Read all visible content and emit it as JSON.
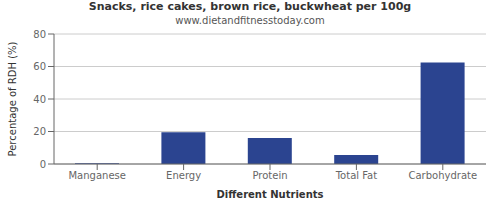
{
  "chart_data": {
    "type": "bar",
    "title": "Snacks, rice cakes, brown rice, buckwheat per 100g",
    "subtitle": "www.dietandfitnesstoday.com",
    "xlabel": "Different Nutrients",
    "ylabel": "Percentage of RDH (%)",
    "categories": [
      "Manganese",
      "Energy",
      "Protein",
      "Total Fat",
      "Carbohydrate"
    ],
    "values": [
      0.5,
      19.5,
      16.0,
      5.5,
      62.5
    ],
    "color": "#2b4490",
    "ylim": [
      0,
      80
    ],
    "yticks": [
      0,
      20,
      40,
      60,
      80
    ],
    "grid": true
  }
}
